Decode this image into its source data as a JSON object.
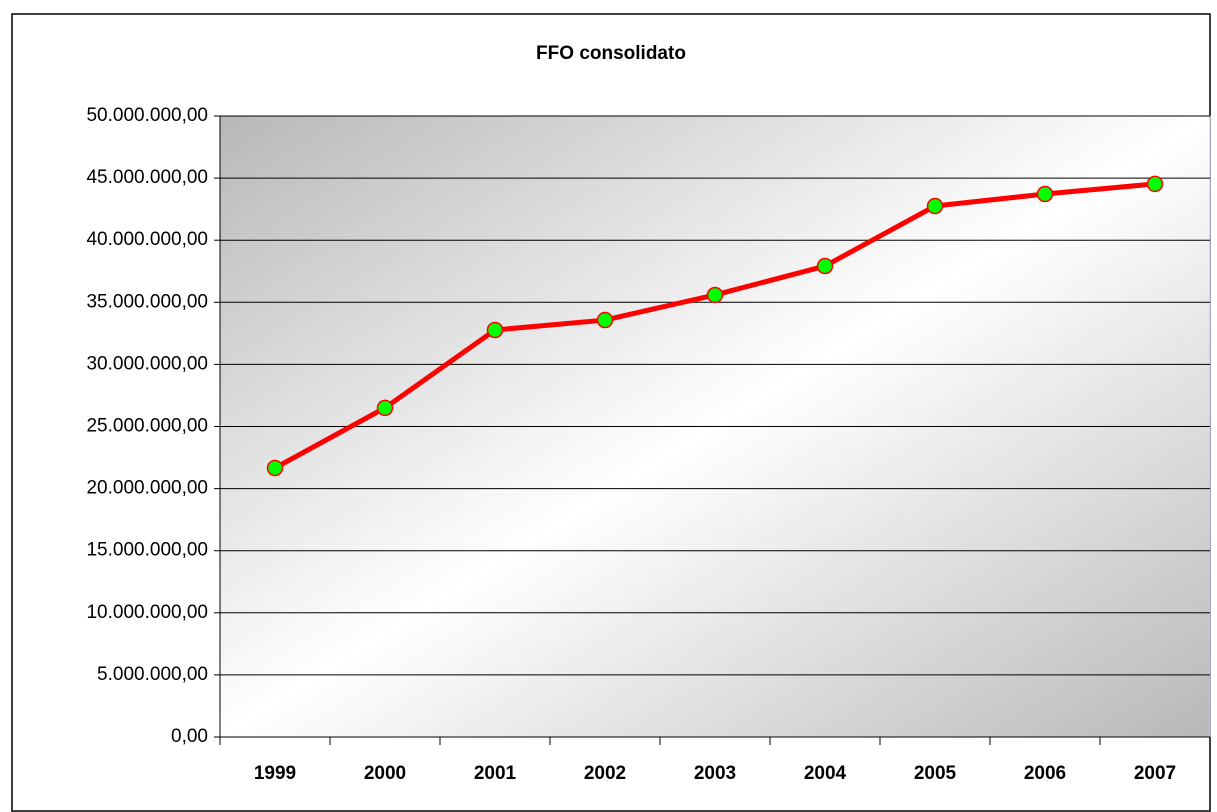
{
  "chart_data": {
    "type": "line",
    "title": "FFO consolidato",
    "categories": [
      "1999",
      "2000",
      "2001",
      "2002",
      "2003",
      "2004",
      "2005",
      "2006",
      "2007"
    ],
    "series": [
      {
        "name": "FFO consolidato",
        "color": "#ff0000",
        "marker_color": "#00ff00",
        "values": [
          21660000,
          26500000,
          32770000,
          33570000,
          35590000,
          37920000,
          42750000,
          43720000,
          44530000
        ]
      }
    ],
    "ylim": [
      0,
      50000000
    ],
    "yticks": [
      {
        "value": 0,
        "label": "0,00"
      },
      {
        "value": 5000000,
        "label": "5.000.000,00"
      },
      {
        "value": 10000000,
        "label": "10.000.000,00"
      },
      {
        "value": 15000000,
        "label": "15.000.000,00"
      },
      {
        "value": 20000000,
        "label": "20.000.000,00"
      },
      {
        "value": 25000000,
        "label": "25.000.000,00"
      },
      {
        "value": 30000000,
        "label": "30.000.000,00"
      },
      {
        "value": 35000000,
        "label": "35.000.000,00"
      },
      {
        "value": 40000000,
        "label": "40.000.000,00"
      },
      {
        "value": 45000000,
        "label": "45.000.000,00"
      },
      {
        "value": 50000000,
        "label": "50.000.000,00"
      }
    ],
    "grid": true
  }
}
